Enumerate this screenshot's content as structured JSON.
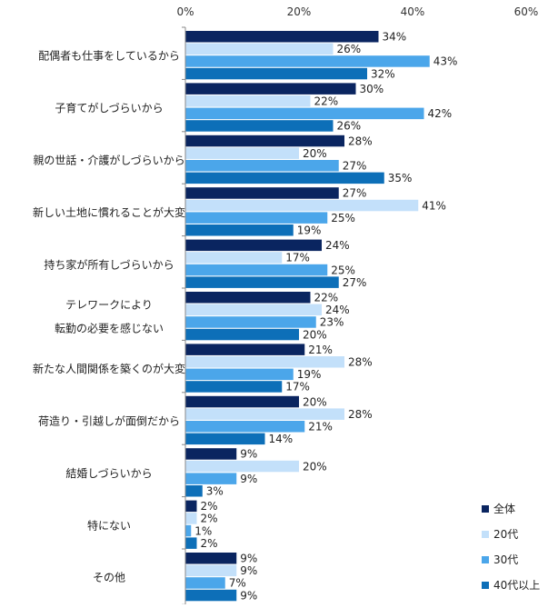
{
  "chart_data": {
    "type": "bar",
    "orientation": "horizontal",
    "title": "",
    "xlabel": "",
    "ylabel": "",
    "xlim": [
      0,
      60
    ],
    "x_ticks": [
      "0%",
      "20%",
      "40%",
      "60%"
    ],
    "x_tick_values": [
      0,
      20,
      40,
      60
    ],
    "value_suffix": "%",
    "grid": false,
    "legend_position": "right-bottom",
    "categories": [
      [
        "配偶者も仕事をしているから"
      ],
      [
        "子育てがしづらいから"
      ],
      [
        "親の世話・介護がしづらいから"
      ],
      [
        "新しい土地に慣れることが大変"
      ],
      [
        "持ち家が所有しづらいから"
      ],
      [
        "テレワークにより",
        "転勤の必要を感じない"
      ],
      [
        "新たな人間関係を築くのが大変"
      ],
      [
        "荷造り・引越しが面倒だから"
      ],
      [
        "結婚しづらいから"
      ],
      [
        "特にない"
      ],
      [
        "その他"
      ]
    ],
    "series": [
      {
        "name": "全体",
        "color": "#0a2560",
        "values": [
          34,
          30,
          28,
          27,
          24,
          22,
          21,
          20,
          9,
          2,
          9
        ]
      },
      {
        "name": "20代",
        "color": "#c3e0fa",
        "values": [
          26,
          22,
          20,
          41,
          17,
          24,
          28,
          28,
          20,
          2,
          9
        ]
      },
      {
        "name": "30代",
        "color": "#4ba6ea",
        "values": [
          43,
          42,
          27,
          25,
          25,
          23,
          19,
          21,
          9,
          1,
          7
        ]
      },
      {
        "name": "40代以上",
        "color": "#0d6fb8",
        "values": [
          32,
          26,
          35,
          19,
          27,
          20,
          17,
          14,
          3,
          2,
          9
        ]
      }
    ]
  }
}
